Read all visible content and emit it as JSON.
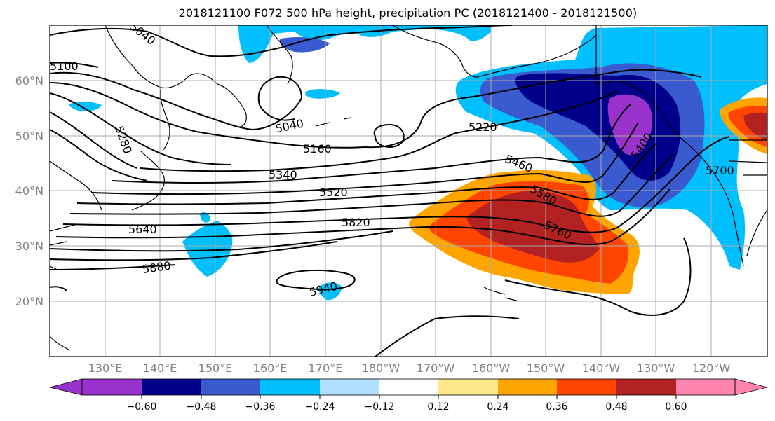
{
  "title": "2018121100 F072 500 hPa height, precipitation PC (2018121400 - 2018121500)",
  "map": {
    "lon_labels": [
      "130°E",
      "140°E",
      "150°E",
      "160°E",
      "170°E",
      "180°W",
      "170°W",
      "160°W",
      "150°W",
      "140°W",
      "130°W",
      "120°W"
    ],
    "lat_labels": [
      "60°N",
      "50°N",
      "40°N",
      "30°N",
      "20°N"
    ],
    "gridline_color": "#aaaaaa",
    "label_color": "#808080"
  },
  "contour_labels": [
    "5040",
    "5100",
    "5040",
    "5280",
    "5160",
    "5220",
    "5340",
    "5460",
    "5520",
    "5580",
    "5640",
    "5820",
    "5760",
    "5880",
    "5940",
    "5400",
    "5700"
  ],
  "colorbar": {
    "colors": [
      "#9932cc",
      "#00008b",
      "#3a5bcf",
      "#00bfff",
      "#b0e0ff",
      "#ffffff",
      "#ffe98a",
      "#ffa500",
      "#ff4500",
      "#b22222",
      "#ff85b0"
    ],
    "tick_labels": [
      "−0.60",
      "−0.48",
      "−0.36",
      "−0.24",
      "−0.12",
      "0.12",
      "0.24",
      "0.36",
      "0.48",
      "0.60"
    ]
  },
  "shading": {
    "negative_colors": [
      "#00bfff",
      "#3a5bcf",
      "#00008b",
      "#9932cc"
    ],
    "positive_colors": [
      "#ffa500",
      "#ff4500",
      "#b22222"
    ]
  }
}
